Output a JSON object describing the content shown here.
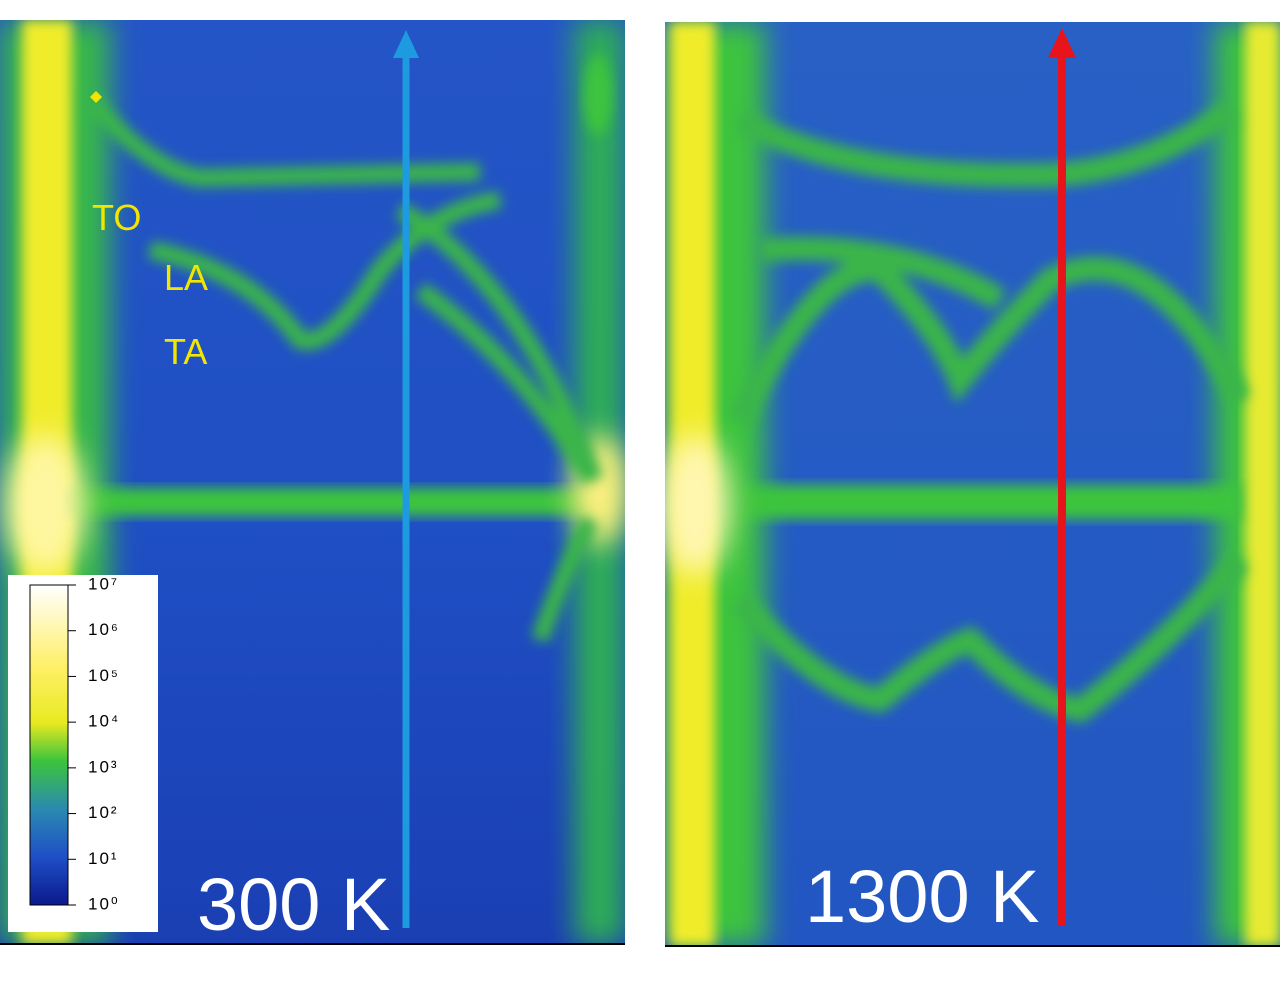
{
  "panels": [
    {
      "label": "300 K",
      "annotations": [
        "TO",
        "LA",
        "TA"
      ]
    },
    {
      "label": "1300 K"
    }
  ],
  "colorbar": {
    "ticks": [
      "10⁰",
      "10¹",
      "10²",
      "10³",
      "10⁴",
      "10⁵",
      "10⁶",
      "10⁷"
    ]
  }
}
